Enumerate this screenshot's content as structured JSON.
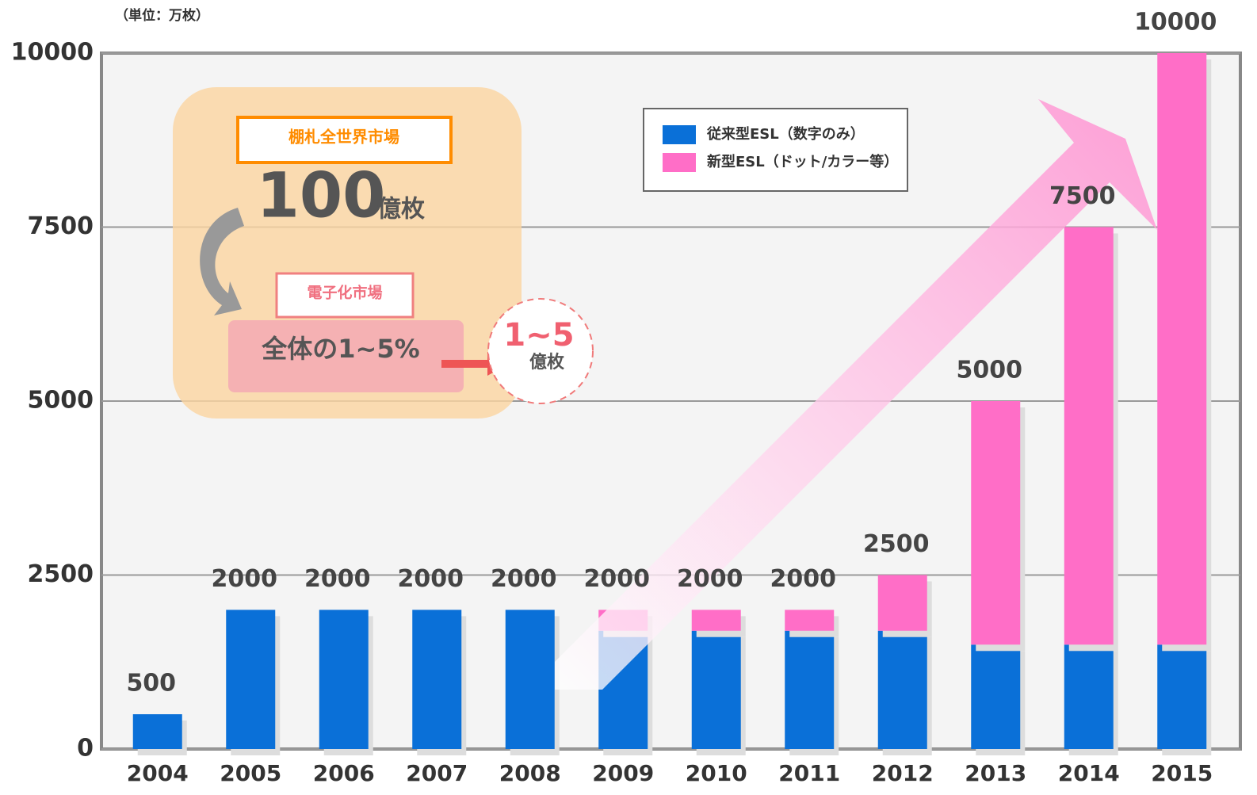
{
  "chart_data": {
    "type": "stacked-bar",
    "unit_label": "（単位：万枚）",
    "categories": [
      "2004",
      "2005",
      "2006",
      "2007",
      "2008",
      "2009",
      "2010",
      "2011",
      "2012",
      "2013",
      "2014",
      "2015"
    ],
    "series": [
      {
        "name": "従来型ESL（数字のみ）",
        "color": "#0a70d8",
        "values": [
          500,
          2000,
          2000,
          2000,
          2000,
          1700,
          1700,
          1700,
          1700,
          1500,
          1500,
          1500
        ]
      },
      {
        "name": "新型ESL（ドット/カラー等）",
        "color": "#ff6ec7",
        "values": [
          0,
          0,
          0,
          0,
          0,
          300,
          300,
          300,
          800,
          3500,
          6000,
          8500
        ]
      }
    ],
    "totals": [
      500,
      2000,
      2000,
      2000,
      2000,
      2000,
      2000,
      2000,
      2500,
      5000,
      7500,
      10000
    ],
    "ylim": [
      0,
      10000
    ],
    "yticks": [
      0,
      2500,
      5000,
      7500,
      10000
    ],
    "grid": true,
    "legend": "upper-right",
    "annotations": {
      "market_title": "棚札全世界市場",
      "market_number": "100",
      "market_unit": "億枚",
      "digital_title": "電子化市場",
      "digital_share": "全体の1~5%",
      "digital_number": "1~5",
      "digital_unit": "億枚"
    }
  }
}
